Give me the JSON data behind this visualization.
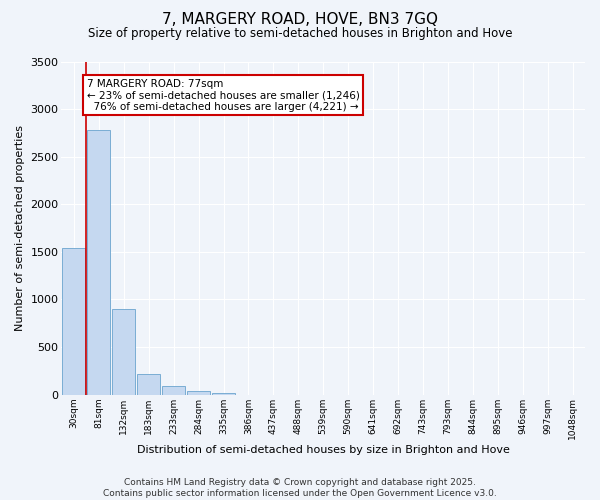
{
  "title": "7, MARGERY ROAD, HOVE, BN3 7GQ",
  "subtitle": "Size of property relative to semi-detached houses in Brighton and Hove",
  "xlabel": "Distribution of semi-detached houses by size in Brighton and Hove",
  "ylabel": "Number of semi-detached properties",
  "bar_color": "#c5d8f0",
  "bar_edge_color": "#7aadd4",
  "background_color": "#f0f4fa",
  "grid_color": "#ffffff",
  "categories": [
    "30sqm",
    "81sqm",
    "132sqm",
    "183sqm",
    "233sqm",
    "284sqm",
    "335sqm",
    "386sqm",
    "437sqm",
    "488sqm",
    "539sqm",
    "590sqm",
    "641sqm",
    "692sqm",
    "743sqm",
    "793sqm",
    "844sqm",
    "895sqm",
    "946sqm",
    "997sqm",
    "1048sqm"
  ],
  "values": [
    1540,
    2780,
    900,
    215,
    90,
    40,
    15,
    0,
    0,
    0,
    0,
    0,
    0,
    0,
    0,
    0,
    0,
    0,
    0,
    0,
    0
  ],
  "ylim": [
    0,
    3500
  ],
  "yticks": [
    0,
    500,
    1000,
    1500,
    2000,
    2500,
    3000,
    3500
  ],
  "property_size": "77sqm",
  "property_name": "7 MARGERY ROAD",
  "pct_smaller": 23,
  "pct_larger": 76,
  "n_smaller": 1246,
  "n_larger": 4221,
  "annotation_box_color": "#ffffff",
  "annotation_box_edge": "#cc0000",
  "red_line_color": "#cc0000",
  "footer_text": "Contains HM Land Registry data © Crown copyright and database right 2025.\nContains public sector information licensed under the Open Government Licence v3.0."
}
